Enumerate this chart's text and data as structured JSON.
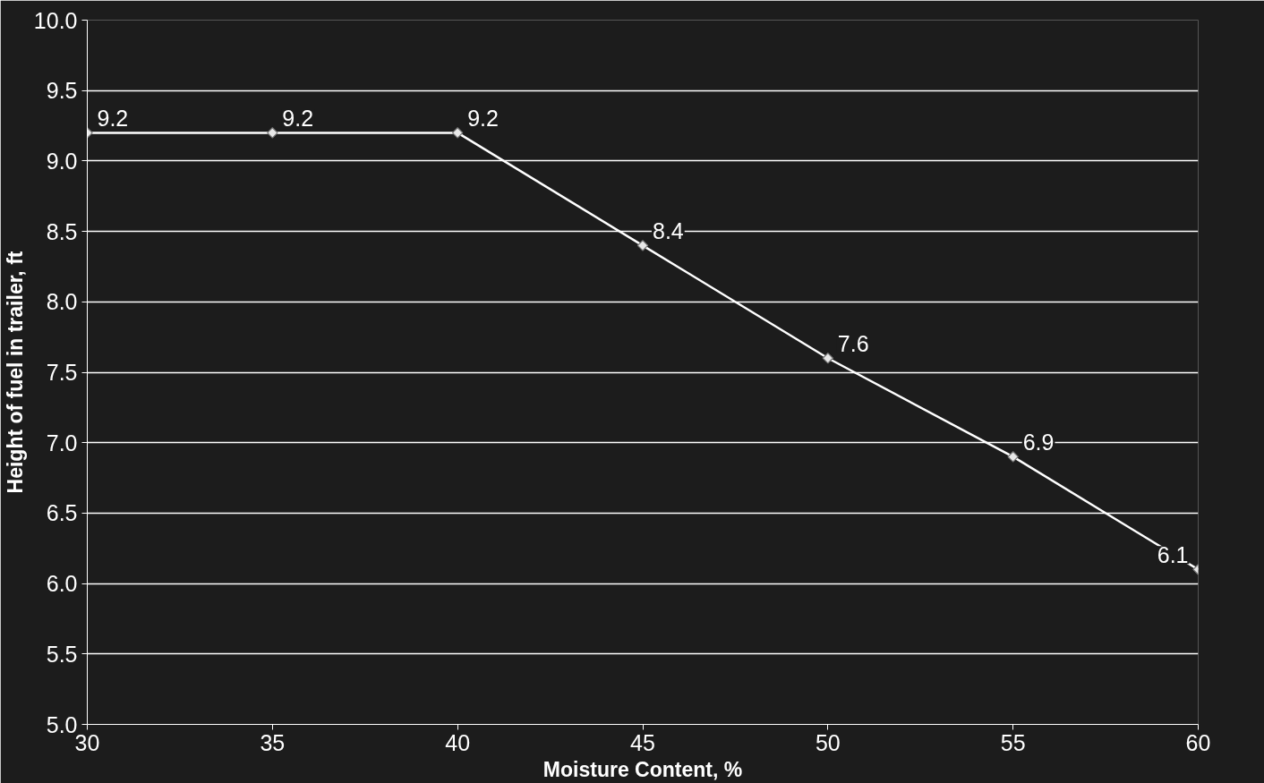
{
  "chart_data": {
    "type": "line",
    "xlabel": "Moisture Content, %",
    "ylabel": "Height of fuel in trailer, ft",
    "x": [
      30,
      35,
      40,
      45,
      50,
      55,
      60
    ],
    "series": [
      {
        "color": "#ffffff",
        "values": [
          9.2,
          9.2,
          9.2,
          8.4,
          7.6,
          6.9,
          6.1
        ]
      }
    ],
    "xlim": [
      30,
      60
    ],
    "xticks": [
      30,
      35,
      40,
      45,
      50,
      55,
      60
    ],
    "ylim": [
      5.0,
      10.0
    ],
    "yticks": [
      {
        "value": 5.0,
        "label": "5.0"
      },
      {
        "value": 5.5,
        "label": "5.5"
      },
      {
        "value": 6.0,
        "label": "6.0"
      },
      {
        "value": 6.5,
        "label": "6.5"
      },
      {
        "value": 7.0,
        "label": "7.0"
      },
      {
        "value": 7.5,
        "label": "7.5"
      },
      {
        "value": 8.0,
        "label": "8.0"
      },
      {
        "value": 8.5,
        "label": "8.5"
      },
      {
        "value": 9.0,
        "label": "9.0"
      },
      {
        "value": 9.5,
        "label": "9.5"
      },
      {
        "value": 10.0,
        "label": "10.0"
      }
    ],
    "grid": "y",
    "marker": "diamond",
    "line_style": "solid",
    "data_labels": true
  }
}
